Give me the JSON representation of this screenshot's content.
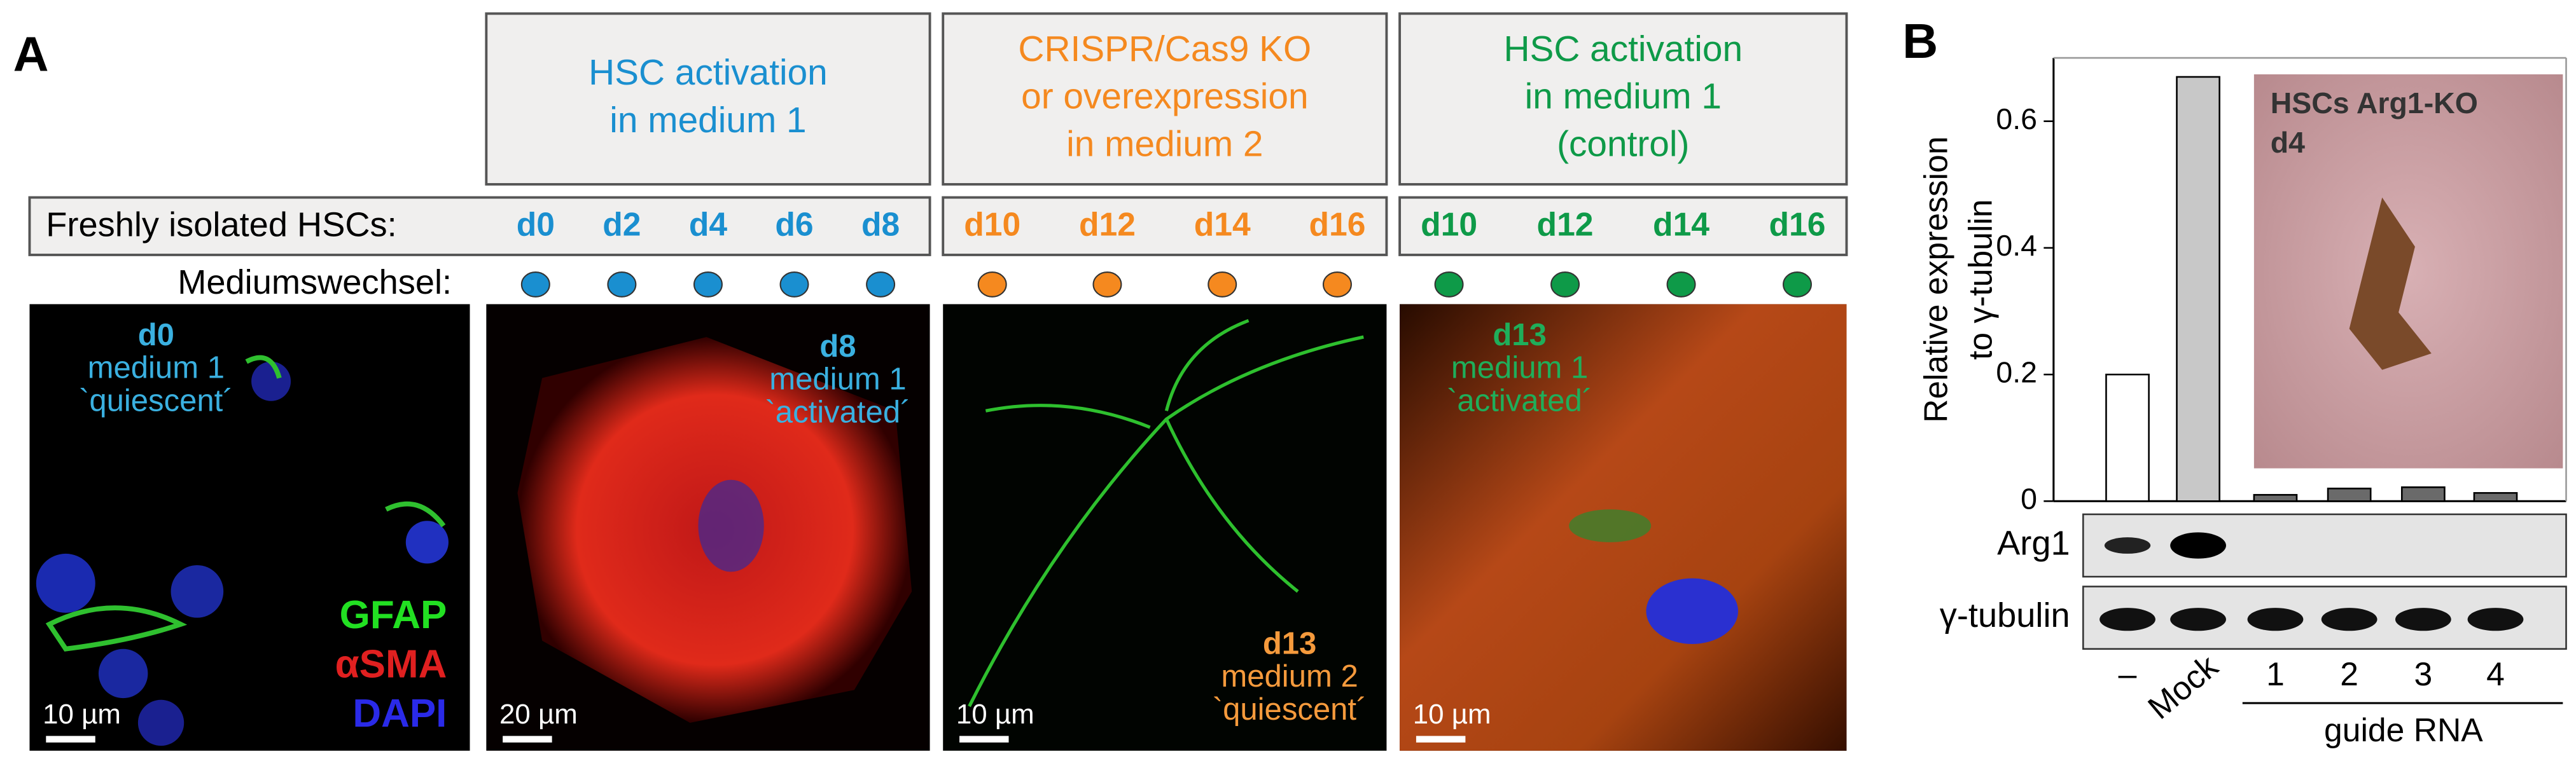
{
  "panel_a": {
    "label": "A",
    "headers": [
      {
        "lines": [
          "HSC activation",
          "in medium 1"
        ],
        "color": "#1a8fd0"
      },
      {
        "lines": [
          "CRISPR/Cas9 KO",
          "or overexpression",
          "in medium 2"
        ],
        "color": "#f5891f"
      },
      {
        "lines": [
          "HSC activation",
          "in medium 1",
          "(control)"
        ],
        "color": "#0e9a48"
      }
    ],
    "row_label": "Freshly isolated HSCs:",
    "medium_label": "Mediumswechsel:",
    "days": [
      [
        "d0",
        "d2",
        "d4",
        "d6",
        "d8"
      ],
      [
        "d10",
        "d12",
        "d14",
        "d16"
      ],
      [
        "d10",
        "d12",
        "d14",
        "d16"
      ]
    ],
    "images": [
      {
        "lines": [
          "d0",
          "medium 1",
          "`quiescent´"
        ],
        "color": "#3ab0e0",
        "scale_bar": "10 µm"
      },
      {
        "lines": [
          "d8",
          "medium 1",
          "`activated´"
        ],
        "color": "#3ab0e0",
        "scale_bar": "20 µm"
      },
      {
        "lines": [
          "d13",
          "medium 2",
          "`quiescent´"
        ],
        "color": "#f59a3c",
        "scale_bar": "10 µm"
      },
      {
        "lines": [
          "d13",
          "medium 1",
          "`activated´"
        ],
        "color": "#1fae5a",
        "scale_bar": "10 µm"
      }
    ],
    "stains": [
      {
        "name": "GFAP",
        "color": "#22e022"
      },
      {
        "name": "αSMA",
        "color": "#e02020"
      },
      {
        "name": "DAPI",
        "color": "#2a2ae8"
      }
    ]
  },
  "panel_b": {
    "label": "B",
    "chart_data": {
      "type": "bar",
      "y_label": [
        "Relative expression",
        "to γ-tubulin"
      ],
      "categories": [
        "–",
        "Mock",
        "1",
        "2",
        "3",
        "4"
      ],
      "values": [
        0.2,
        0.67,
        0.01,
        0.02,
        0.022,
        0.013
      ],
      "colors": [
        "#ffffff",
        "#c8c8c8",
        "#6a6a6a",
        "#6a6a6a",
        "#6a6a6a",
        "#6a6a6a"
      ],
      "ylim": [
        0,
        0.7
      ],
      "yticks": [
        0,
        0.2,
        0.4,
        0.6
      ]
    },
    "inset": [
      "HSCs Arg1-KO",
      "d4"
    ],
    "blots": [
      "Arg1",
      "γ-tubulin"
    ],
    "group_label": "guide RNA"
  }
}
